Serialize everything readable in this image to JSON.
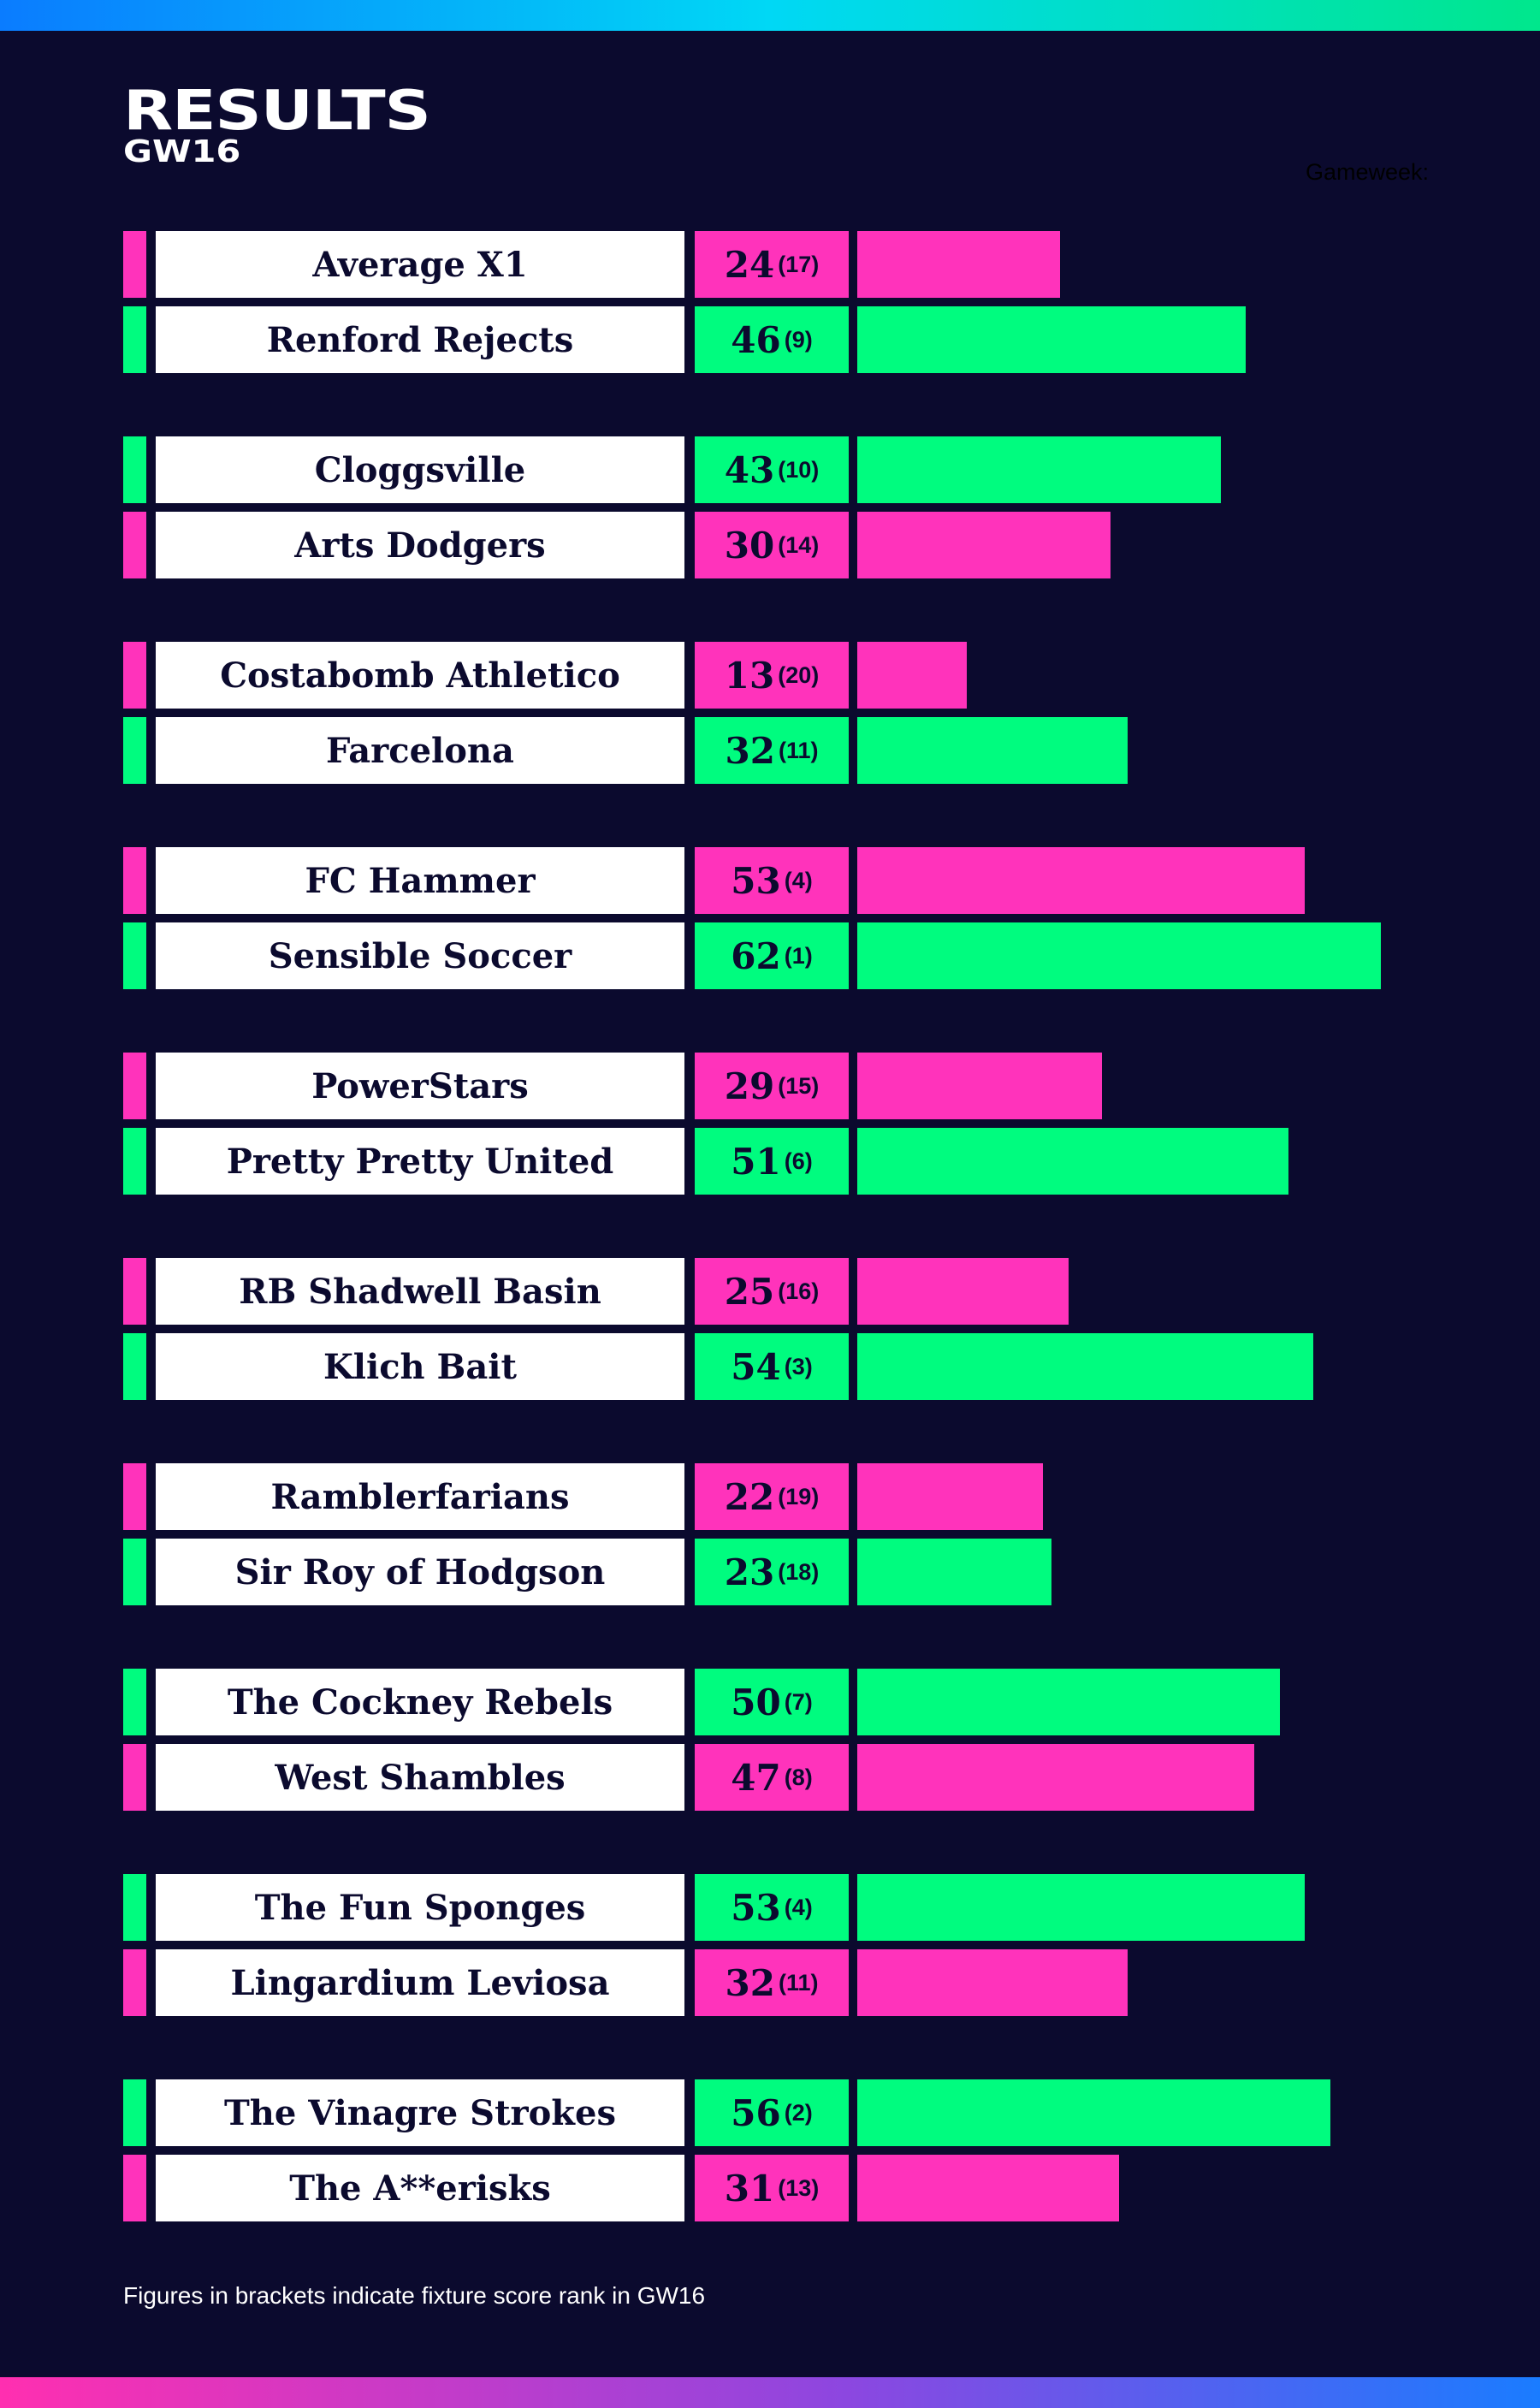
{
  "header": {
    "title": "RESULTS",
    "subtitle": "GW16",
    "gameweek_label": "Gameweek:"
  },
  "colors": {
    "background": "#0b0a2e",
    "winner": "#00fc7f",
    "loser": "#ff33bb",
    "name_box": "#ffffff"
  },
  "chart_data": {
    "type": "bar",
    "orientation": "horizontal",
    "title": "RESULTS",
    "subtitle": "GW16",
    "xlim": [
      0,
      65
    ],
    "fixtures": [
      {
        "teams": [
          {
            "name": "Average X1",
            "score": 24,
            "rank_label": "(17)",
            "result": "loss"
          },
          {
            "name": "Renford Rejects",
            "score": 46,
            "rank_label": "(9)",
            "result": "win"
          }
        ]
      },
      {
        "teams": [
          {
            "name": "Cloggsville",
            "score": 43,
            "rank_label": "(10)",
            "result": "win"
          },
          {
            "name": "Arts Dodgers",
            "score": 30,
            "rank_label": "(14)",
            "result": "loss"
          }
        ]
      },
      {
        "teams": [
          {
            "name": "Costabomb Athletico",
            "score": 13,
            "rank_label": "(20)",
            "result": "loss"
          },
          {
            "name": "Farcelona",
            "score": 32,
            "rank_label": "(11)",
            "result": "win"
          }
        ]
      },
      {
        "teams": [
          {
            "name": "FC Hammer",
            "score": 53,
            "rank_label": "(4)",
            "result": "loss"
          },
          {
            "name": "Sensible Soccer",
            "score": 62,
            "rank_label": "(1)",
            "result": "win"
          }
        ]
      },
      {
        "teams": [
          {
            "name": "PowerStars",
            "score": 29,
            "rank_label": "(15)",
            "result": "loss"
          },
          {
            "name": "Pretty Pretty United",
            "score": 51,
            "rank_label": "(6)",
            "result": "win"
          }
        ]
      },
      {
        "teams": [
          {
            "name": "RB Shadwell Basin",
            "score": 25,
            "rank_label": "(16)",
            "result": "loss"
          },
          {
            "name": "Klich Bait",
            "score": 54,
            "rank_label": "(3)",
            "result": "win"
          }
        ]
      },
      {
        "teams": [
          {
            "name": "Ramblerfarians",
            "score": 22,
            "rank_label": "(19)",
            "result": "loss"
          },
          {
            "name": "Sir Roy of Hodgson",
            "score": 23,
            "rank_label": "(18)",
            "result": "win"
          }
        ]
      },
      {
        "teams": [
          {
            "name": "The Cockney Rebels",
            "score": 50,
            "rank_label": "(7)",
            "result": "win"
          },
          {
            "name": "West Shambles",
            "score": 47,
            "rank_label": "(8)",
            "result": "loss"
          }
        ]
      },
      {
        "teams": [
          {
            "name": "The Fun Sponges",
            "score": 53,
            "rank_label": "(4)",
            "result": "win"
          },
          {
            "name": "Lingardium Leviosa",
            "score": 32,
            "rank_label": "(11)",
            "result": "loss"
          }
        ]
      },
      {
        "teams": [
          {
            "name": "The Vinagre Strokes",
            "score": 56,
            "rank_label": "(2)",
            "result": "win"
          },
          {
            "name": "The A**erisks",
            "score": 31,
            "rank_label": "(13)",
            "result": "loss"
          }
        ]
      }
    ]
  },
  "footnote": "Figures in brackets indicate fixture score rank in GW16"
}
